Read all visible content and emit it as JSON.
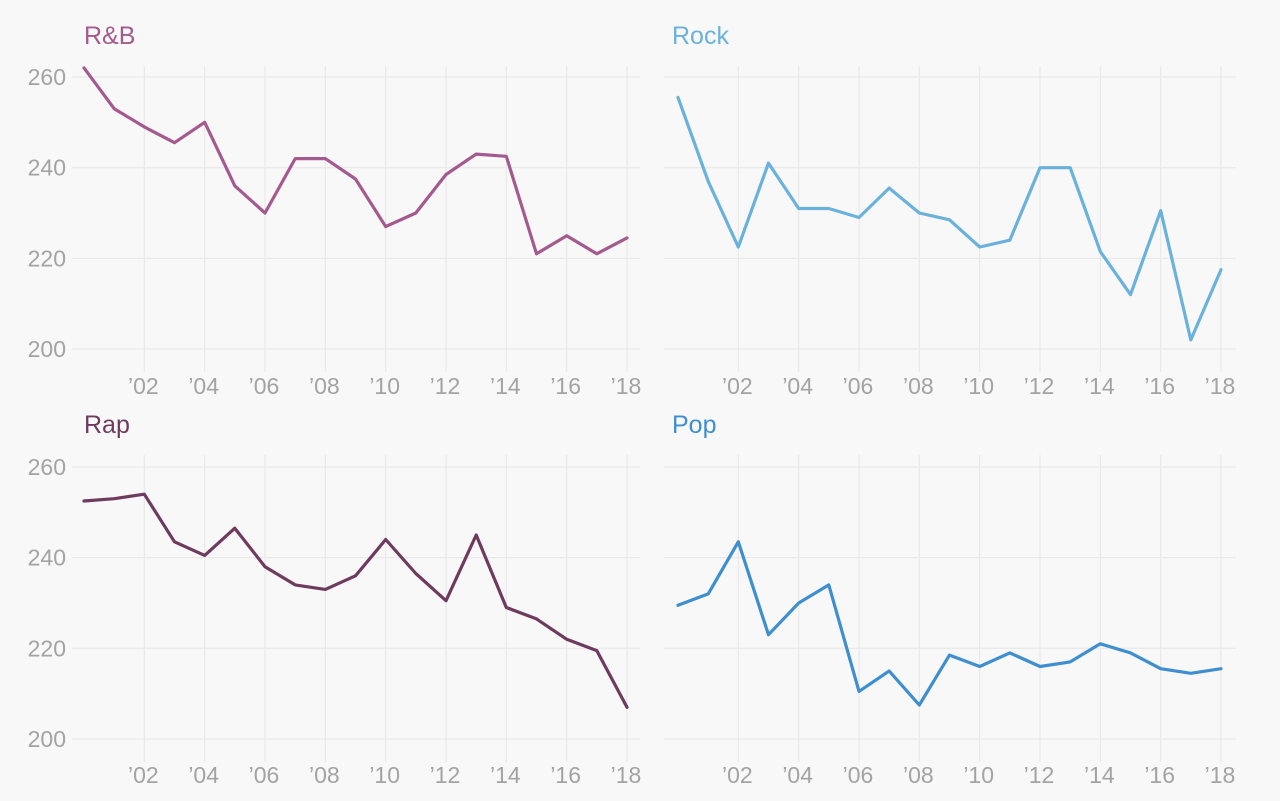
{
  "chart_data": [
    {
      "type": "line",
      "title": "R&B",
      "color": "#a55a8f",
      "x": [
        2000,
        2001,
        2002,
        2003,
        2004,
        2005,
        2006,
        2007,
        2008,
        2009,
        2010,
        2011,
        2012,
        2013,
        2014,
        2015,
        2016,
        2017,
        2018
      ],
      "values": [
        262,
        253,
        249,
        245.5,
        250,
        236,
        230,
        242,
        242,
        237.5,
        227,
        230,
        238.5,
        243,
        242.5,
        221,
        225,
        221,
        224.5
      ],
      "ylim": [
        200,
        260
      ],
      "yticks": [
        "200",
        "220",
        "240",
        "260"
      ],
      "xticks": [
        "’02",
        "’04",
        "’06",
        "’08",
        "’10",
        "’12",
        "’14",
        "’16",
        "’18"
      ],
      "grid": true
    },
    {
      "type": "line",
      "title": "Rock",
      "color": "#6ab2dc",
      "x": [
        2000,
        2001,
        2002,
        2003,
        2004,
        2005,
        2006,
        2007,
        2008,
        2009,
        2010,
        2011,
        2012,
        2013,
        2014,
        2015,
        2016,
        2017,
        2018
      ],
      "values": [
        255.5,
        237,
        222.5,
        241,
        231,
        231,
        229,
        235.5,
        230,
        228.5,
        222.5,
        224,
        240,
        240,
        221.5,
        212,
        230.5,
        202,
        217.5
      ],
      "ylim": [
        200,
        260
      ],
      "yticks": [],
      "xticks": [
        "’02",
        "’04",
        "’06",
        "’08",
        "’10",
        "’12",
        "’14",
        "’16",
        "’18"
      ],
      "grid": true
    },
    {
      "type": "line",
      "title": "Rap",
      "color": "#6e3b5f",
      "x": [
        2000,
        2001,
        2002,
        2003,
        2004,
        2005,
        2006,
        2007,
        2008,
        2009,
        2010,
        2011,
        2012,
        2013,
        2014,
        2015,
        2016,
        2017,
        2018
      ],
      "values": [
        252.5,
        253,
        254,
        243.5,
        240.5,
        246.5,
        238,
        234,
        233,
        236,
        244,
        236.5,
        230.5,
        245,
        229,
        226.5,
        222,
        219.5,
        207
      ],
      "ylim": [
        200,
        260
      ],
      "yticks": [
        "200",
        "220",
        "240",
        "260"
      ],
      "xticks": [
        "’02",
        "’04",
        "’06",
        "’08",
        "’10",
        "’12",
        "’14",
        "’16",
        "’18"
      ],
      "grid": true
    },
    {
      "type": "line",
      "title": "Pop",
      "color": "#3f8fd0",
      "x": [
        2000,
        2001,
        2002,
        2003,
        2004,
        2005,
        2006,
        2007,
        2008,
        2009,
        2010,
        2011,
        2012,
        2013,
        2014,
        2015,
        2016,
        2017,
        2018
      ],
      "values": [
        229.5,
        232,
        243.5,
        223,
        230,
        234,
        210.5,
        215,
        207.5,
        218.5,
        216,
        219,
        216,
        217,
        221,
        219,
        215.5,
        214.5,
        215.5
      ],
      "ylim": [
        200,
        260
      ],
      "yticks": [],
      "xticks": [
        "’02",
        "’04",
        "’06",
        "’08",
        "’10",
        "’12",
        "’14",
        "’16",
        "’18"
      ],
      "grid": true
    }
  ]
}
